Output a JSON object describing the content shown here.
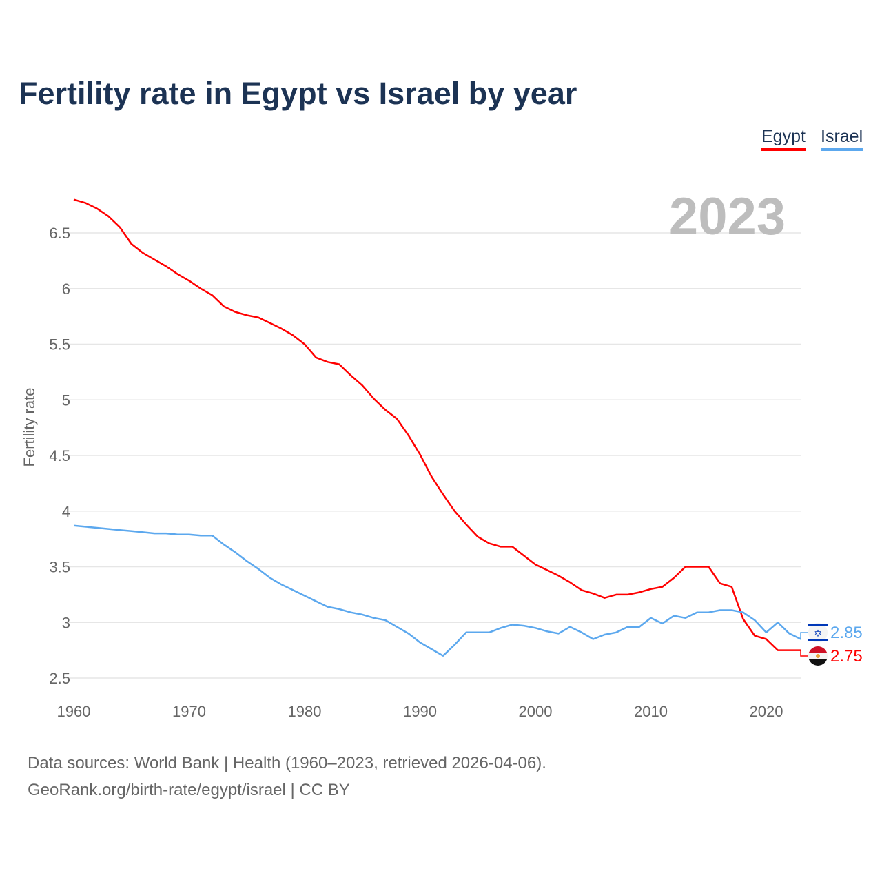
{
  "title": "Fertility rate in Egypt vs Israel by year",
  "legend": [
    {
      "label": "Egypt",
      "color": "#ff0000"
    },
    {
      "label": "Israel",
      "color": "#5ca8ee"
    }
  ],
  "footer": {
    "line1": "Data sources: World Bank | Health (1960–2023, retrieved 2026-04-06).",
    "line2": "GeoRank.org/birth-rate/egypt/israel | CC BY"
  },
  "chart_data": {
    "type": "line",
    "title": "Fertility rate in Egypt vs Israel by year",
    "year_label": "2023",
    "xlabel": "",
    "ylabel": "Fertility rate",
    "xlim": [
      1960,
      2023
    ],
    "ylim": [
      2.5,
      6.8
    ],
    "xticks": [
      1960,
      1970,
      1980,
      1990,
      2000,
      2010,
      2020
    ],
    "yticks": [
      2.5,
      3,
      3.5,
      4,
      4.5,
      5,
      5.5,
      6,
      6.5
    ],
    "ytick_labels": [
      "2.5",
      "3",
      "3.5",
      "4",
      "4.5",
      "5",
      "5.5",
      "6",
      "6.5"
    ],
    "grid": true,
    "legend_position": "top-right",
    "x_start": 1960,
    "series": [
      {
        "name": "Egypt",
        "color": "#ff0000",
        "end_label": "2.75",
        "flag": "egypt-flag",
        "values": [
          6.8,
          6.77,
          6.72,
          6.65,
          6.55,
          6.4,
          6.32,
          6.26,
          6.2,
          6.13,
          6.07,
          6.0,
          5.94,
          5.84,
          5.79,
          5.76,
          5.74,
          5.69,
          5.64,
          5.58,
          5.5,
          5.38,
          5.34,
          5.32,
          5.22,
          5.13,
          5.01,
          4.91,
          4.83,
          4.68,
          4.51,
          4.31,
          4.15,
          4.0,
          3.88,
          3.77,
          3.71,
          3.68,
          3.68,
          3.6,
          3.52,
          3.47,
          3.42,
          3.36,
          3.29,
          3.26,
          3.22,
          3.25,
          3.25,
          3.27,
          3.3,
          3.32,
          3.4,
          3.5,
          3.5,
          3.5,
          3.35,
          3.32,
          3.03,
          2.88,
          2.85,
          2.75,
          2.75,
          2.75
        ]
      },
      {
        "name": "Israel",
        "color": "#5ca8ee",
        "end_label": "2.85",
        "flag": "israel-flag",
        "values": [
          3.87,
          3.86,
          3.85,
          3.84,
          3.83,
          3.82,
          3.81,
          3.8,
          3.8,
          3.79,
          3.79,
          3.78,
          3.78,
          3.7,
          3.63,
          3.55,
          3.48,
          3.4,
          3.34,
          3.29,
          3.24,
          3.19,
          3.14,
          3.12,
          3.09,
          3.07,
          3.04,
          3.02,
          2.96,
          2.9,
          2.82,
          2.76,
          2.7,
          2.8,
          2.91,
          2.91,
          2.91,
          2.95,
          2.98,
          2.97,
          2.95,
          2.92,
          2.9,
          2.96,
          2.91,
          2.85,
          2.89,
          2.91,
          2.96,
          2.96,
          3.04,
          2.99,
          3.06,
          3.04,
          3.09,
          3.09,
          3.11,
          3.11,
          3.09,
          3.02,
          2.91,
          3.0,
          2.9,
          2.85
        ]
      }
    ]
  }
}
